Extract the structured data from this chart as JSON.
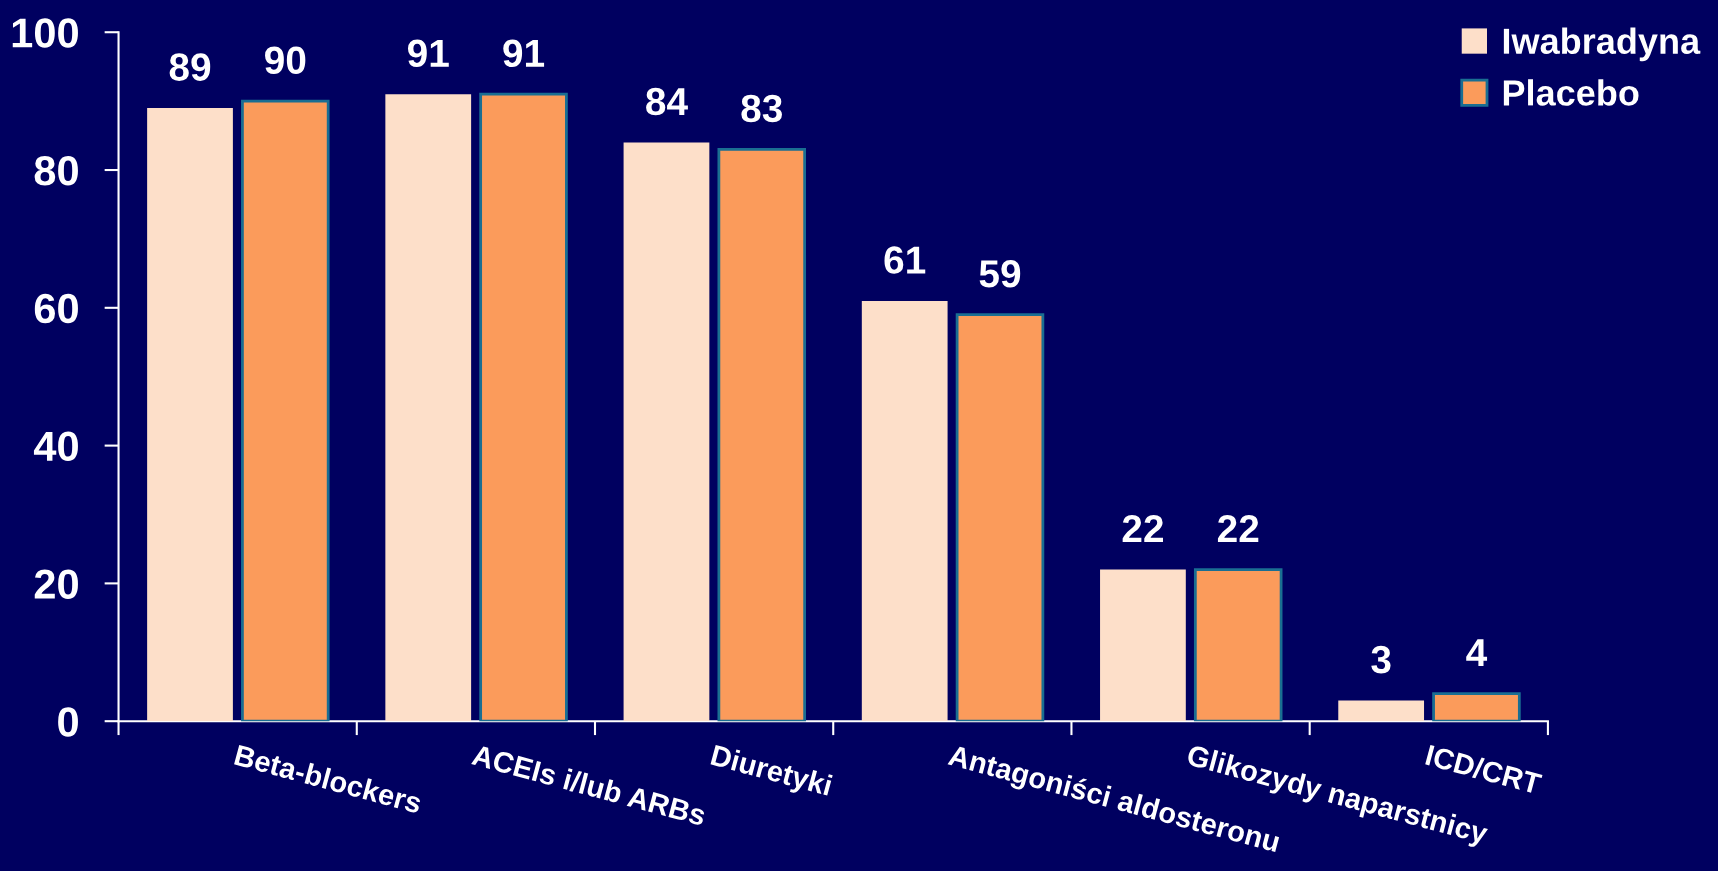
{
  "chart_data": {
    "type": "bar",
    "categories": [
      "Beta-blockers",
      "ACEIs i/lub ARBs",
      "Diuretyki",
      "Antagoniści aldosteronu",
      "Glikozydy naparstnicy",
      "ICD/CRT"
    ],
    "series": [
      {
        "name": "Iwabradyna",
        "color": "#fddfc9",
        "values": [
          89,
          91,
          84,
          61,
          22,
          3
        ]
      },
      {
        "name": "Placebo",
        "color": "#fb9b5b",
        "values": [
          90,
          91,
          83,
          59,
          22,
          4
        ]
      }
    ],
    "ylim": [
      0,
      100
    ],
    "yticks": [
      0,
      20,
      40,
      60,
      80,
      100
    ],
    "data_labels": true,
    "grid": false,
    "legend": "top right"
  }
}
